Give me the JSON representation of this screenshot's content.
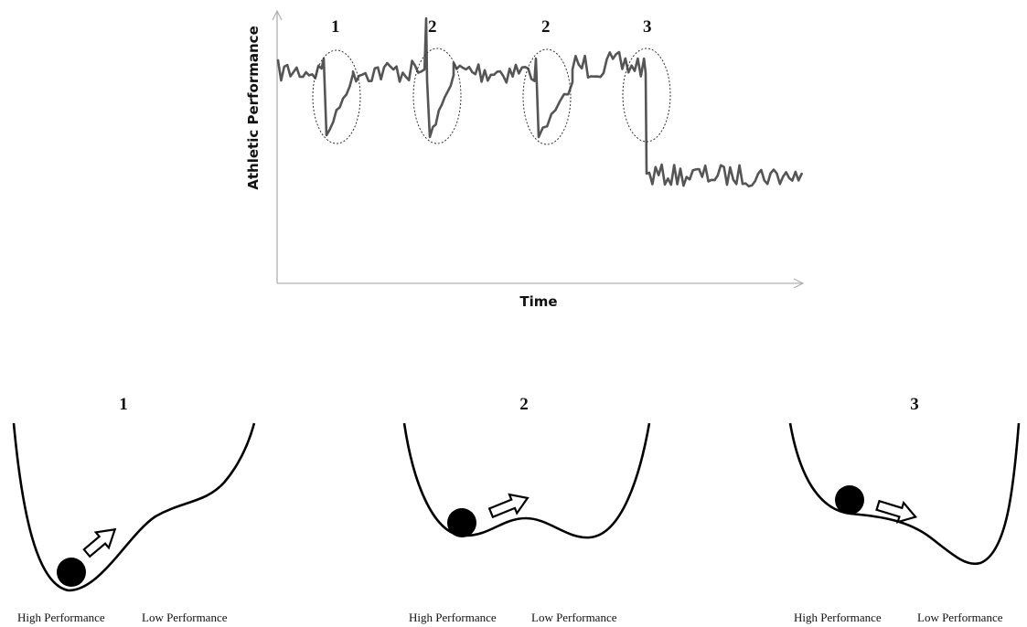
{
  "top_chart": {
    "y_axis_label": "Athletic Performance",
    "x_axis_label": "Time",
    "event_labels": [
      "1",
      "2",
      "2",
      "3"
    ],
    "line_color": "#555555",
    "axis_color": "#b0b0b0"
  },
  "landscapes": [
    {
      "number": "1",
      "left_label": "High Performance",
      "right_label": "Low Performance"
    },
    {
      "number": "2",
      "left_label": "High Performance",
      "right_label": "Low Performance"
    },
    {
      "number": "3",
      "left_label": "High Performance",
      "right_label": "Low Performance"
    }
  ]
}
